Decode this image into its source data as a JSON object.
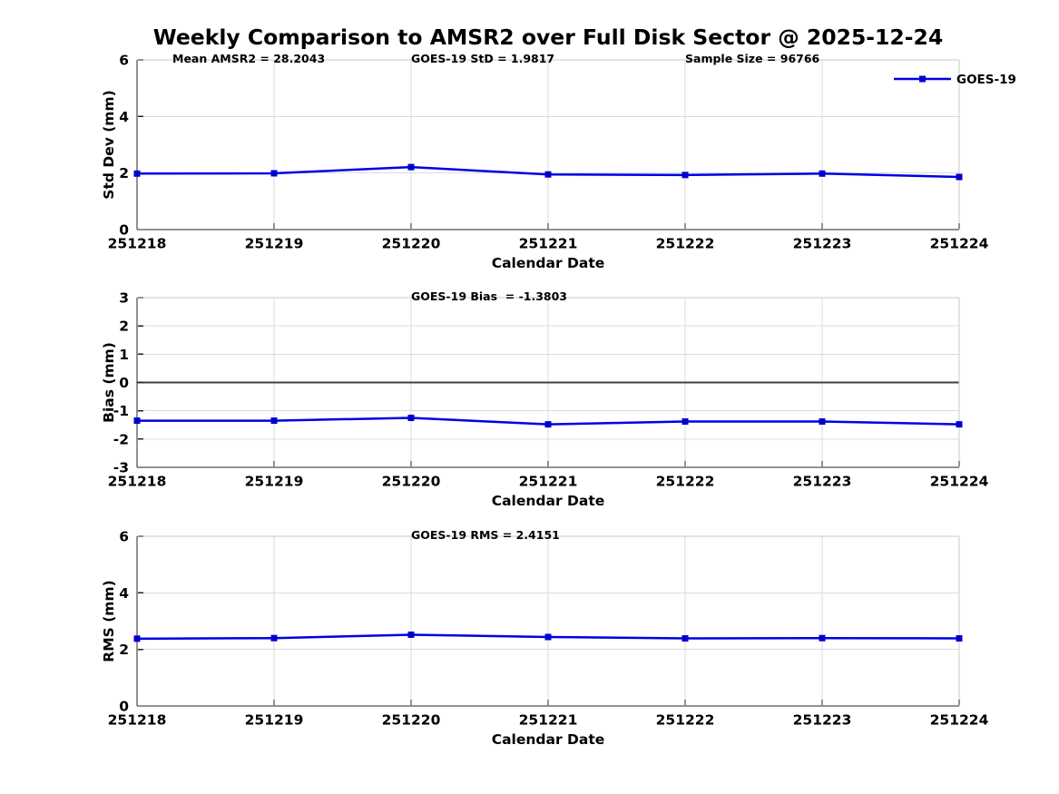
{
  "title": "Weekly Comparison to AMSR2 over Full Disk Sector @ 2025-12-24",
  "legend": {
    "label": "GOES-19",
    "position": "top-right"
  },
  "colors": {
    "line": "#0000E6",
    "marker": "#0000CD",
    "grid": "#DBDBDB",
    "spine_light": "#C8C8C8",
    "spine_dark": "#262626",
    "zero_line": "#404040",
    "text": "#000000"
  },
  "chart_data": [
    {
      "type": "line",
      "name": "std-dev",
      "ylabel": "Std Dev (mm)",
      "xlabel": "Calendar Date",
      "ylim": [
        0,
        6
      ],
      "yticks": [
        "0",
        "2",
        "4",
        "6"
      ],
      "grid": true,
      "zero_line": false,
      "legend_entry": "GOES-19",
      "annotations": [
        "Mean AMSR2 = 28.2043",
        "GOES-19 StD = 1.9817",
        "Sample Size = 96766"
      ],
      "categories": [
        "251218",
        "251219",
        "251220",
        "251221",
        "251222",
        "251223",
        "251224"
      ],
      "series": [
        {
          "name": "GOES-19",
          "values": [
            1.98,
            1.99,
            2.21,
            1.95,
            1.93,
            1.98,
            1.86
          ]
        }
      ]
    },
    {
      "type": "line",
      "name": "bias",
      "ylabel": "Bias (mm)",
      "xlabel": "Calendar Date",
      "ylim": [
        -3,
        3
      ],
      "yticks": [
        "-3",
        "-2",
        "-1",
        "0",
        "1",
        "2",
        "3"
      ],
      "grid": true,
      "zero_line": true,
      "annotations": [
        "GOES-19 Bias  = -1.3803"
      ],
      "categories": [
        "251218",
        "251219",
        "251220",
        "251221",
        "251222",
        "251223",
        "251224"
      ],
      "series": [
        {
          "name": "GOES-19",
          "values": [
            -1.35,
            -1.35,
            -1.25,
            -1.48,
            -1.38,
            -1.38,
            -1.48
          ]
        }
      ]
    },
    {
      "type": "line",
      "name": "rms",
      "ylabel": "RMS (mm)",
      "xlabel": "Calendar Date",
      "ylim": [
        0,
        6
      ],
      "yticks": [
        "0",
        "2",
        "4",
        "6"
      ],
      "grid": true,
      "zero_line": false,
      "annotations": [
        "GOES-19 RMS = 2.4151"
      ],
      "categories": [
        "251218",
        "251219",
        "251220",
        "251221",
        "251222",
        "251223",
        "251224"
      ],
      "series": [
        {
          "name": "GOES-19",
          "values": [
            2.38,
            2.4,
            2.52,
            2.44,
            2.39,
            2.4,
            2.39
          ]
        }
      ]
    }
  ]
}
